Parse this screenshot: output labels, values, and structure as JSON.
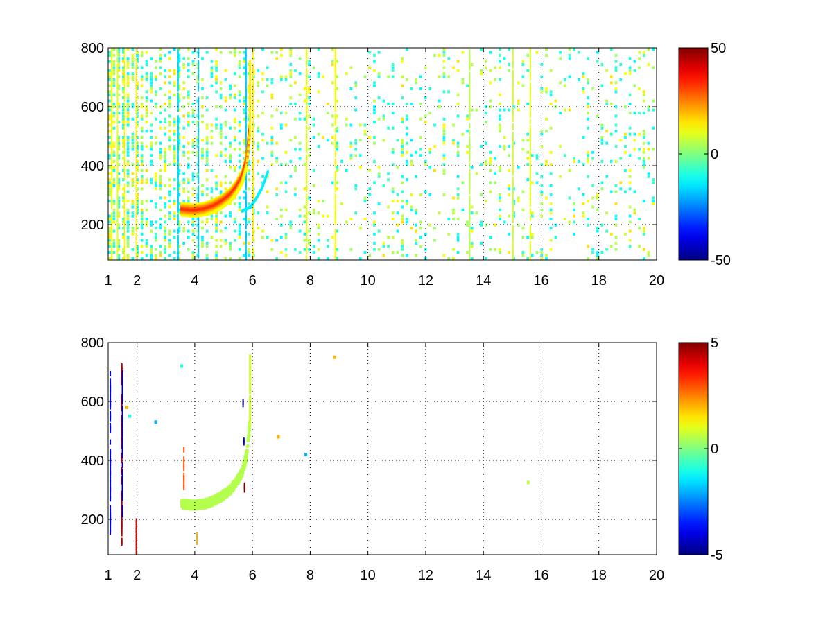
{
  "chart_data": [
    {
      "type": "heatmap",
      "xlim": [
        1,
        20
      ],
      "ylim": [
        80,
        800
      ],
      "x_ticks": [
        1,
        2,
        4,
        6,
        8,
        10,
        12,
        14,
        16,
        18,
        20
      ],
      "x_tick_labels": [
        "1",
        "2",
        "4",
        "6",
        "8",
        "10",
        "12",
        "14",
        "16",
        "18",
        "20"
      ],
      "y_ticks": [
        200,
        400,
        600,
        800
      ],
      "y_tick_labels": [
        "200",
        "400",
        "600",
        "800"
      ],
      "grid": true,
      "colormap": "jet",
      "clim": [
        -50,
        50
      ],
      "colorbar_ticks": [
        50,
        0,
        -50
      ],
      "colorbar_tick_labels": [
        "50",
        "0",
        "-50"
      ],
      "features": {
        "arc_x": [
          3.5,
          3.8,
          4.0,
          4.3,
          4.6,
          4.9,
          5.2,
          5.4,
          5.6,
          5.75,
          5.85
        ],
        "arc_y": [
          255,
          252,
          252,
          256,
          266,
          282,
          305,
          330,
          365,
          420,
          520
        ],
        "arc_value": 35,
        "cyan_arc_x": [
          5.6,
          5.9,
          6.1,
          6.3,
          6.5
        ],
        "cyan_arc_y": [
          250,
          265,
          295,
          330,
          385
        ],
        "cyan_arc_value": -14
      }
    },
    {
      "type": "heatmap",
      "xlim": [
        1,
        20
      ],
      "ylim": [
        80,
        800
      ],
      "x_ticks": [
        1,
        2,
        4,
        6,
        8,
        10,
        12,
        14,
        16,
        18,
        20
      ],
      "x_tick_labels": [
        "1",
        "2",
        "4",
        "6",
        "8",
        "10",
        "12",
        "14",
        "16",
        "18",
        "20"
      ],
      "y_ticks": [
        200,
        400,
        600,
        800
      ],
      "y_tick_labels": [
        "200",
        "400",
        "600",
        "800"
      ],
      "grid": true,
      "colormap": "jet",
      "clim": [
        -5,
        5
      ],
      "colorbar_ticks": [
        5,
        0,
        -5
      ],
      "colorbar_tick_labels": [
        "5",
        "0",
        "-5"
      ],
      "features": {
        "arc_x": [
          3.5,
          3.8,
          4.0,
          4.3,
          4.6,
          4.9,
          5.2,
          5.4,
          5.6,
          5.75,
          5.85
        ],
        "arc_y": [
          255,
          252,
          252,
          256,
          266,
          282,
          305,
          330,
          365,
          420,
          520
        ],
        "arc_value": 0.5
      }
    }
  ]
}
